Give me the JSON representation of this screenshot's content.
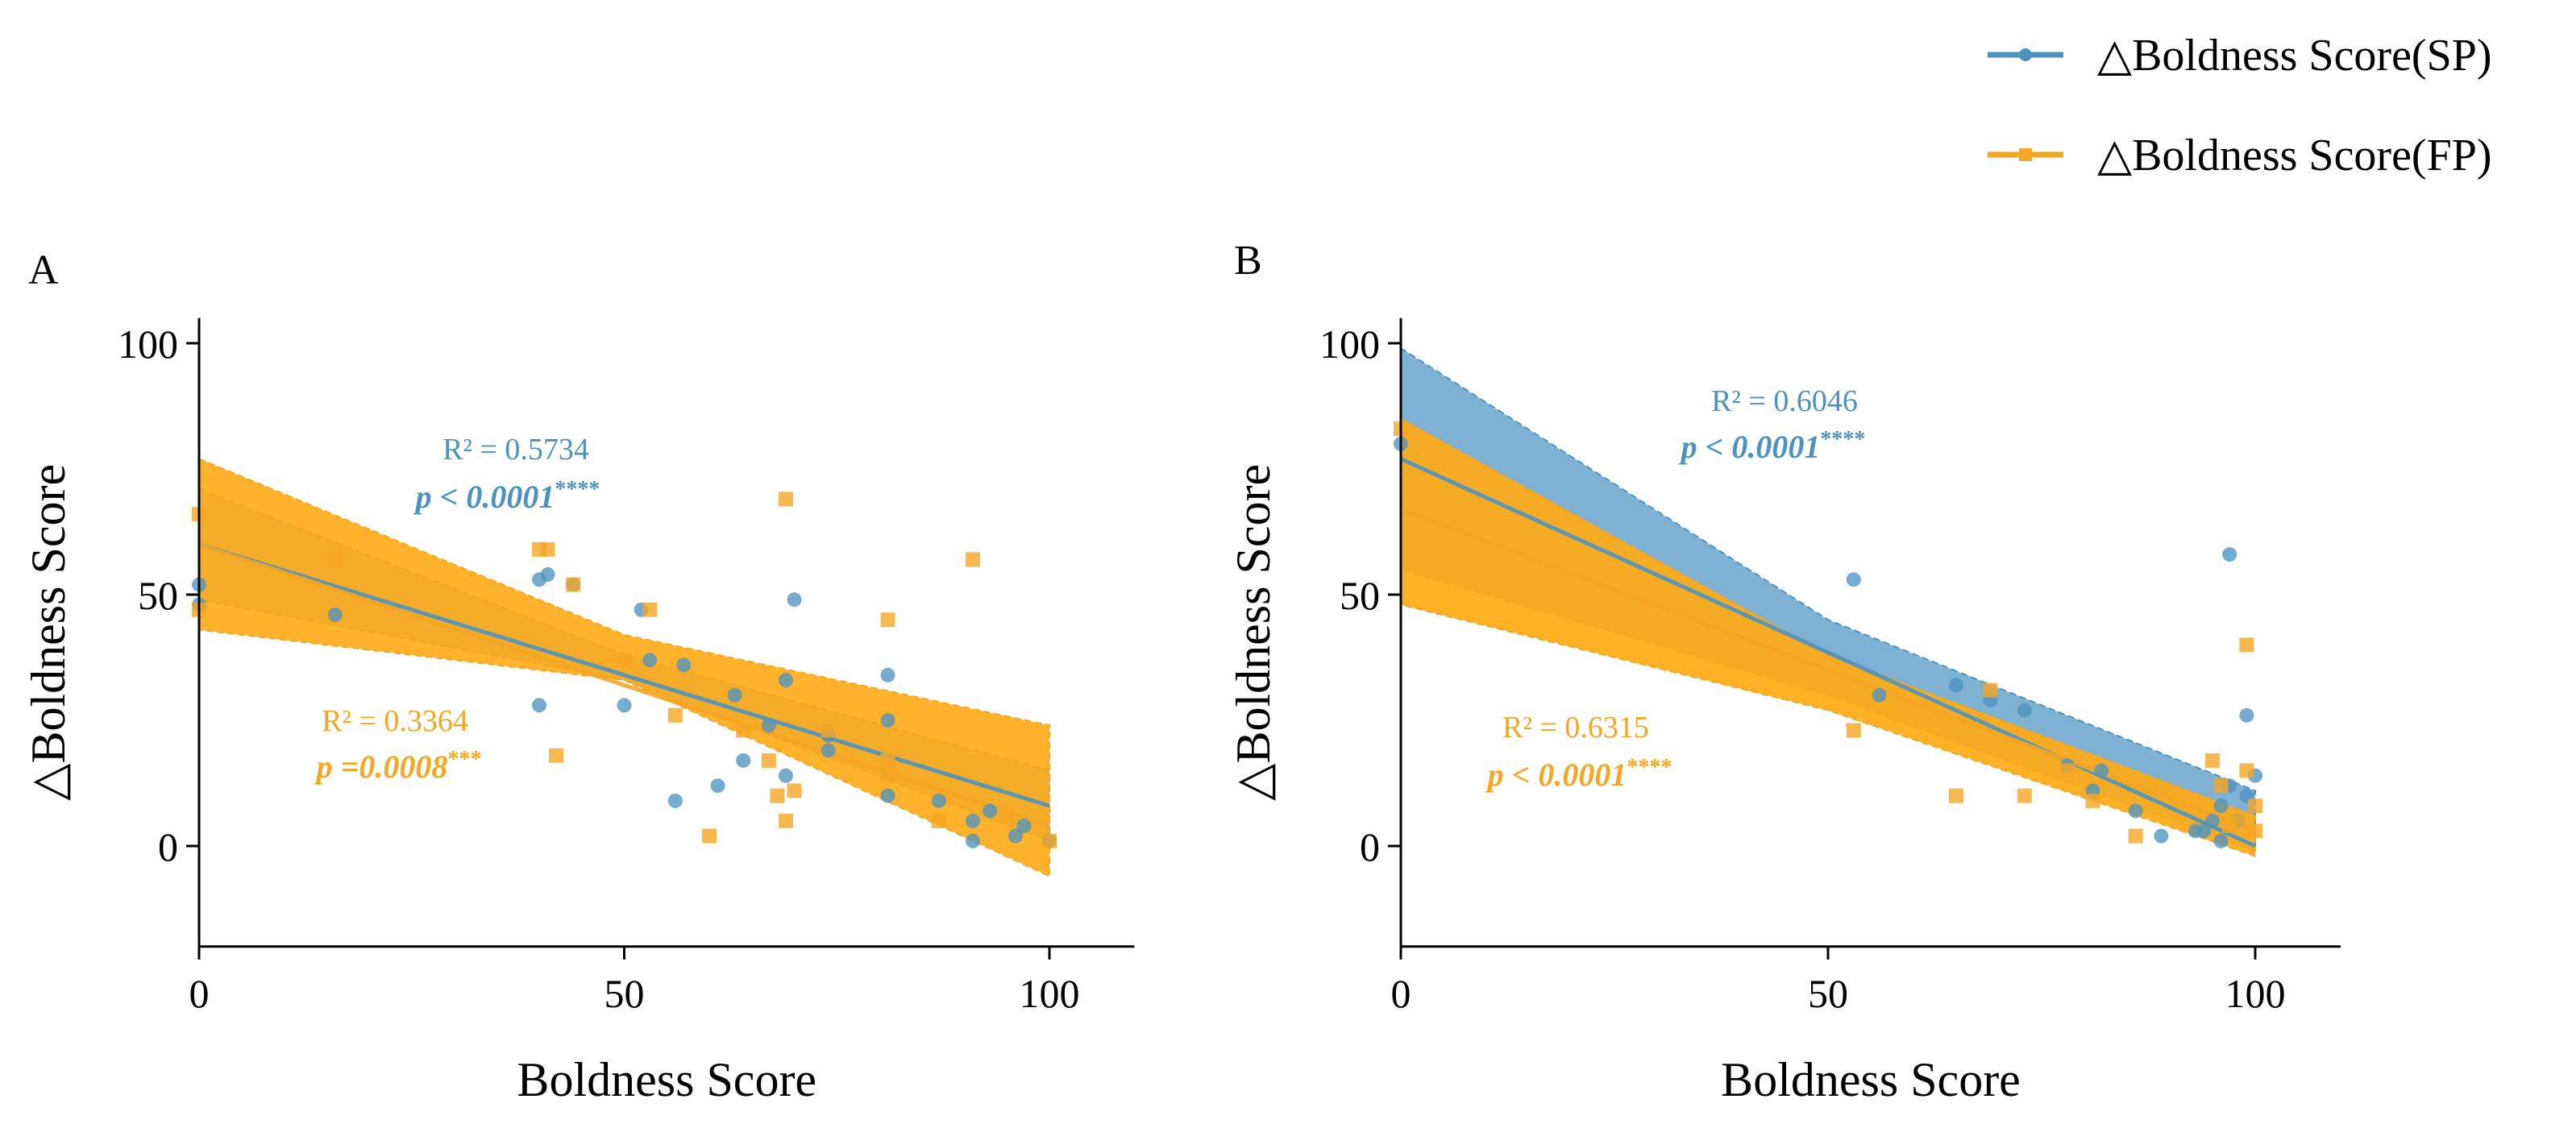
{
  "legend": {
    "position": "top-right",
    "items": [
      {
        "label": "△Boldness Score(SP)",
        "color": "#4e93c0",
        "marker": "circle"
      },
      {
        "label": "△Boldness Score(FP)",
        "color": "#f5a623",
        "marker": "square"
      }
    ]
  },
  "chart_data": [
    {
      "panel_label": "A",
      "type": "scatter",
      "xlabel": "Boldness Score",
      "ylabel": "△Boldness Score",
      "xlim": [
        0,
        110
      ],
      "ylim": [
        -20,
        105
      ],
      "xticks": [
        0,
        50,
        100
      ],
      "yticks": [
        0,
        50,
        100
      ],
      "grid": false,
      "series": [
        {
          "name": "△Boldness Score(SP)",
          "color": "#4e93c0",
          "fill": "rgba(78,147,192,0.6)",
          "marker": "circle",
          "fit": {
            "start": [
              0,
              60
            ],
            "end": [
              100,
              8
            ],
            "band_upper": [
              [
                0,
                71
              ],
              [
                50,
                38
              ],
              [
                100,
                15
              ]
            ],
            "band_lower": [
              [
                0,
                49
              ],
              [
                50,
                33
              ],
              [
                100,
                1
              ]
            ]
          },
          "annotation": {
            "r2": "R² = 0.5734",
            "p": "p < 0.0001",
            "stars": "****"
          },
          "points": [
            [
              0,
              52
            ],
            [
              0,
              48
            ],
            [
              16,
              46
            ],
            [
              40,
              28
            ],
            [
              40,
              53
            ],
            [
              41,
              54
            ],
            [
              44,
              52
            ],
            [
              50,
              28
            ],
            [
              52,
              47
            ],
            [
              53,
              37
            ],
            [
              56,
              9
            ],
            [
              57,
              36
            ],
            [
              61,
              12
            ],
            [
              63,
              30
            ],
            [
              64,
              17
            ],
            [
              67,
              24
            ],
            [
              69,
              33
            ],
            [
              69,
              14
            ],
            [
              70,
              49
            ],
            [
              74,
              22
            ],
            [
              74,
              19
            ],
            [
              81,
              34
            ],
            [
              81,
              25
            ],
            [
              81,
              10
            ],
            [
              87,
              9
            ],
            [
              91,
              5
            ],
            [
              91,
              1
            ],
            [
              93,
              7
            ],
            [
              96,
              2
            ],
            [
              97,
              4
            ],
            [
              100,
              1
            ]
          ]
        },
        {
          "name": "△Boldness Score(FP)",
          "color": "#f5a623",
          "fill": "rgba(255,170,20,0.9)",
          "marker": "square",
          "fit": {
            "start": [
              0,
              60
            ],
            "end": [
              100,
              4
            ],
            "band_upper": [
              [
                0,
                77
              ],
              [
                50,
                42
              ],
              [
                100,
                24
              ]
            ],
            "band_lower": [
              [
                0,
                43
              ],
              [
                50,
                33
              ],
              [
                100,
                -6
              ]
            ]
          },
          "annotation": {
            "r2": "R² = 0.3364",
            "p": "p =0.0008",
            "stars": "***"
          },
          "points": [
            [
              0,
              66
            ],
            [
              0,
              47
            ],
            [
              16,
              57
            ],
            [
              40,
              59
            ],
            [
              41,
              59
            ],
            [
              42,
              18
            ],
            [
              44,
              52
            ],
            [
              50,
              37
            ],
            [
              53,
              47
            ],
            [
              56,
              26
            ],
            [
              60,
              2
            ],
            [
              64,
              23
            ],
            [
              67,
              17
            ],
            [
              68,
              10
            ],
            [
              69,
              69
            ],
            [
              69,
              5
            ],
            [
              70,
              11
            ],
            [
              74,
              23
            ],
            [
              81,
              45
            ],
            [
              81,
              17
            ],
            [
              81,
              14
            ],
            [
              87,
              5
            ],
            [
              91,
              57
            ],
            [
              95,
              6
            ],
            [
              100,
              1
            ]
          ]
        }
      ]
    },
    {
      "panel_label": "B",
      "type": "scatter",
      "xlabel": "Boldness Score",
      "ylabel": "△Boldness Score",
      "xlim": [
        0,
        110
      ],
      "ylim": [
        -20,
        105
      ],
      "xticks": [
        0,
        50,
        100
      ],
      "yticks": [
        0,
        50,
        100
      ],
      "grid": false,
      "series": [
        {
          "name": "△Boldness Score(SP)",
          "color": "#4e93c0",
          "fill": "rgba(78,147,192,0.72)",
          "marker": "circle",
          "fit": {
            "start": [
              0,
              77
            ],
            "end": [
              100,
              0
            ],
            "band_upper": [
              [
                0,
                99
              ],
              [
                50,
                45
              ],
              [
                100,
                11
              ]
            ],
            "band_lower": [
              [
                0,
                55
              ],
              [
                50,
                30
              ],
              [
                100,
                -1
              ]
            ]
          },
          "annotation": {
            "r2": "R² = 0.6046",
            "p": "p < 0.0001",
            "stars": "****"
          },
          "points": [
            [
              0,
              80
            ],
            [
              53,
              53
            ],
            [
              56,
              30
            ],
            [
              65,
              32
            ],
            [
              69,
              29
            ],
            [
              73,
              27
            ],
            [
              78,
              16
            ],
            [
              81,
              11
            ],
            [
              82,
              15
            ],
            [
              86,
              7
            ],
            [
              89,
              2
            ],
            [
              93,
              3
            ],
            [
              94,
              3
            ],
            [
              95,
              5
            ],
            [
              96,
              1
            ],
            [
              96,
              8
            ],
            [
              97,
              12
            ],
            [
              97,
              58
            ],
            [
              98,
              5
            ],
            [
              99,
              26
            ],
            [
              99,
              10
            ],
            [
              100,
              14
            ]
          ]
        },
        {
          "name": "△Boldness Score(FP)",
          "color": "#f5a623",
          "fill": "rgba(255,170,20,0.92)",
          "marker": "square",
          "fit": {
            "start": [
              0,
              67
            ],
            "end": [
              100,
              3
            ],
            "band_upper": [
              [
                0,
                85
              ],
              [
                50,
                38
              ],
              [
                100,
                6
              ]
            ],
            "band_lower": [
              [
                0,
                48
              ],
              [
                50,
                27
              ],
              [
                100,
                -2
              ]
            ]
          },
          "annotation": {
            "r2": "R² = 0.6315",
            "p": "p < 0.0001",
            "stars": "****"
          },
          "points": [
            [
              0,
              83
            ],
            [
              53,
              23
            ],
            [
              65,
              10
            ],
            [
              69,
              31
            ],
            [
              73,
              10
            ],
            [
              78,
              15
            ],
            [
              81,
              9
            ],
            [
              86,
              2
            ],
            [
              89,
              11
            ],
            [
              95,
              17
            ],
            [
              96,
              12
            ],
            [
              97,
              4
            ],
            [
              98,
              5
            ],
            [
              99,
              15
            ],
            [
              99,
              40
            ],
            [
              100,
              3
            ],
            [
              100,
              8
            ]
          ]
        }
      ]
    }
  ]
}
